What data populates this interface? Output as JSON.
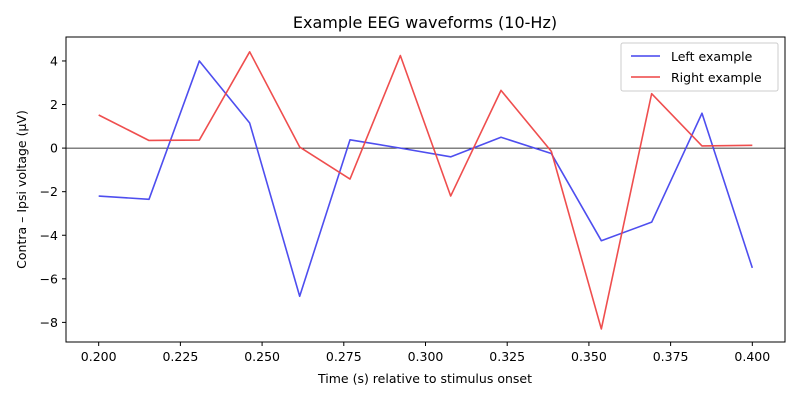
{
  "chart_data": {
    "type": "line",
    "title": "Example EEG waveforms (10-Hz)",
    "xlabel": "Time (s) relative to stimulus onset",
    "ylabel": "Contra – Ipsi voltage (µV)",
    "xlim": [
      0.19,
      0.41
    ],
    "ylim": [
      -8.9,
      5.1
    ],
    "xticks": [
      0.2,
      0.225,
      0.25,
      0.275,
      0.3,
      0.325,
      0.35,
      0.375,
      0.4
    ],
    "xtick_labels": [
      "0.200",
      "0.225",
      "0.250",
      "0.275",
      "0.300",
      "0.325",
      "0.350",
      "0.375",
      "0.400"
    ],
    "yticks": [
      -8,
      -6,
      -4,
      -2,
      0,
      2,
      4
    ],
    "ytick_labels": [
      "−8",
      "−6",
      "−4",
      "−2",
      "0",
      "2",
      "4"
    ],
    "zero_line": true,
    "grid": false,
    "legend_position": "top-right",
    "x": [
      0.2,
      0.2154,
      0.2308,
      0.2462,
      0.2615,
      0.2769,
      0.2923,
      0.3077,
      0.3231,
      0.3385,
      0.3538,
      0.3692,
      0.3846,
      0.4
    ],
    "series": [
      {
        "name": "Left example",
        "color": "#4444ee",
        "values": [
          -2.2,
          -2.35,
          4.0,
          1.15,
          -6.8,
          0.38,
          0.0,
          -0.4,
          0.5,
          -0.25,
          -4.25,
          -3.4,
          1.6,
          -5.5
        ]
      },
      {
        "name": "Right example",
        "color": "#ee4444",
        "values": [
          1.52,
          0.35,
          0.37,
          4.42,
          0.05,
          -1.42,
          4.25,
          -2.2,
          2.65,
          -0.15,
          -8.3,
          2.5,
          0.1,
          0.13
        ]
      }
    ]
  }
}
